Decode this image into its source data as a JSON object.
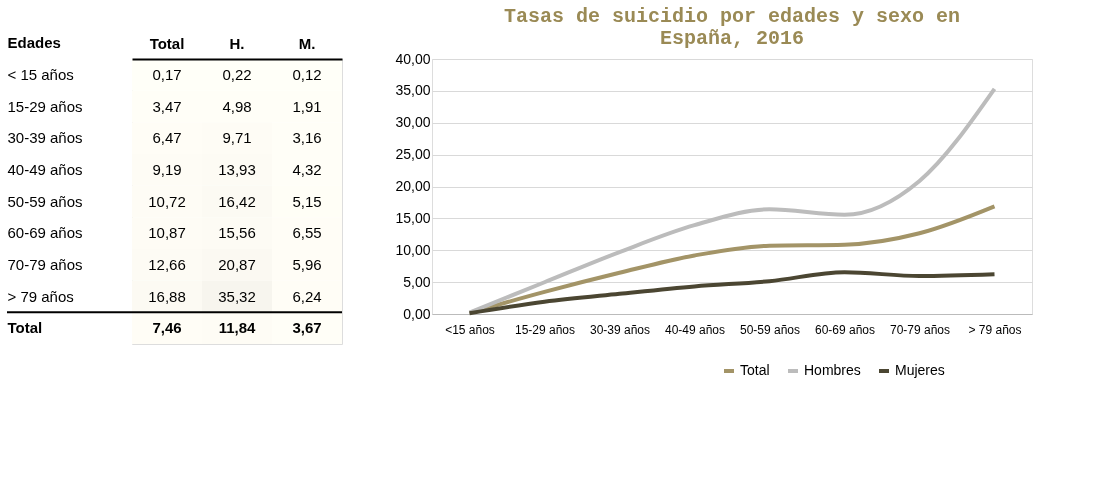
{
  "chart_data": [
    {
      "type": "heatmap",
      "ylabel": "Edades",
      "categories": [
        "Total",
        "H.",
        "M."
      ],
      "y_categories": [
        "< 15 años",
        "15-29 años",
        "30-39 años",
        "40-49 años",
        "50-59 años",
        "60-69 años",
        "70-79 años",
        "> 79 años",
        "Total"
      ],
      "cells": [
        [
          0.17,
          0.22,
          0.12
        ],
        [
          3.47,
          4.98,
          1.91
        ],
        [
          6.47,
          9.71,
          3.16
        ],
        [
          9.19,
          13.93,
          4.32
        ],
        [
          10.72,
          16.42,
          5.15
        ],
        [
          10.87,
          15.56,
          6.55
        ],
        [
          12.66,
          20.87,
          5.96
        ],
        [
          16.88,
          35.32,
          6.24
        ],
        [
          7.46,
          11.84,
          3.67
        ]
      ],
      "cell_labels": [
        [
          "0,17",
          "0,22",
          "0,12"
        ],
        [
          "3,47",
          "4,98",
          "1,91"
        ],
        [
          "6,47",
          "9,71",
          "3,16"
        ],
        [
          "9,19",
          "13,93",
          "4,32"
        ],
        [
          "10,72",
          "16,42",
          "5,15"
        ],
        [
          "10,87",
          "15,56",
          "6,55"
        ],
        [
          "12,66",
          "20,87",
          "5,96"
        ],
        [
          "16,88",
          "35,32",
          "6,24"
        ],
        [
          "7,46",
          "11,84",
          "3,67"
        ]
      ]
    },
    {
      "type": "line",
      "title": "Tasas de suicidio por edades y sexo en España, 2016",
      "categories": [
        "<15 años",
        "15-29 años",
        "30-39 años",
        "40-49 años",
        "50-59 años",
        "60-69 años",
        "70-79 años",
        "> 79 años"
      ],
      "series": [
        {
          "name": "Total",
          "color": "#a39467",
          "values": [
            0.17,
            3.47,
            6.47,
            9.19,
            10.72,
            10.87,
            12.66,
            16.88
          ]
        },
        {
          "name": "Hombres",
          "color": "#bcbcbc",
          "values": [
            0.22,
            4.98,
            9.71,
            13.93,
            16.42,
            15.56,
            20.87,
            35.32
          ]
        },
        {
          "name": "Mujeres",
          "color": "#4b4632",
          "values": [
            0.12,
            1.91,
            3.16,
            4.32,
            5.15,
            6.55,
            5.96,
            6.24
          ]
        }
      ],
      "ylim": [
        0,
        40
      ],
      "yticks": [
        {
          "value": 0,
          "label": "0,00"
        },
        {
          "value": 5,
          "label": "5,00"
        },
        {
          "value": 10,
          "label": "10,00"
        },
        {
          "value": 15,
          "label": "15,00"
        },
        {
          "value": 20,
          "label": "20,00"
        },
        {
          "value": 25,
          "label": "25,00"
        },
        {
          "value": 30,
          "label": "30,00"
        },
        {
          "value": 35,
          "label": "35,00"
        },
        {
          "value": 40,
          "label": "40,00"
        }
      ],
      "grid": "y",
      "legend": "bottom"
    }
  ]
}
